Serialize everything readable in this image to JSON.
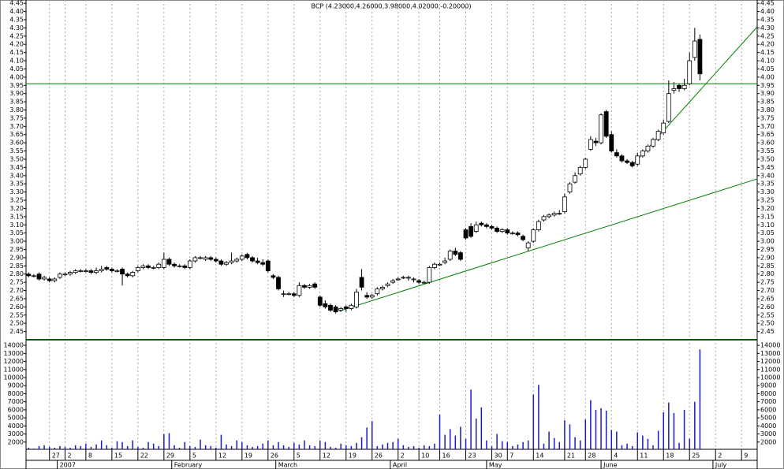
{
  "chart_data": [
    {
      "type": "candlestick",
      "title": "BCP (4.23000,4.26000,3.98000,4.02000,-0.20000)",
      "up_color": "#ffffff",
      "down_color": "#000000",
      "line_color": "#008000",
      "grid": true,
      "xlim": [
        -0.5,
        140
      ],
      "ylim": [
        2.4,
        4.47
      ],
      "yticks": [
        2.45,
        {
          "value": 2.5,
          "label": "2.50"
        },
        2.55,
        {
          "value": 2.6,
          "label": "2.60"
        },
        2.65,
        {
          "value": 2.7,
          "label": "2.70"
        },
        2.75,
        {
          "value": 2.8,
          "label": "2.80"
        },
        2.85,
        {
          "value": 2.9,
          "label": "2.90"
        },
        2.95,
        {
          "value": 3,
          "label": "3.00"
        },
        3.05,
        {
          "value": 3.1,
          "label": "3.10"
        },
        3.15,
        {
          "value": 3.2,
          "label": "3.20"
        },
        3.25,
        {
          "value": 3.3,
          "label": "3.30"
        },
        3.35,
        {
          "value": 3.4,
          "label": "3.40"
        },
        3.45,
        {
          "value": 3.5,
          "label": "3.50"
        },
        3.55,
        {
          "value": 3.6,
          "label": "3.60"
        },
        3.65,
        {
          "value": 3.7,
          "label": "3.70"
        },
        3.75,
        {
          "value": 3.8,
          "label": "3.80"
        },
        3.85,
        {
          "value": 3.9,
          "label": "3.90"
        },
        3.95,
        {
          "value": 4,
          "label": "4.00"
        },
        4.05,
        {
          "value": 4.1,
          "label": "4.10"
        },
        4.15,
        {
          "value": 4.2,
          "label": "4.20"
        },
        4.25,
        {
          "value": 4.3,
          "label": "4.30"
        },
        4.35,
        {
          "value": 4.4,
          "label": "4.40"
        },
        4.45
      ],
      "xticks": [
        {
          "value": 4,
          "label": "27"
        },
        {
          "value": 7,
          "label": "2"
        },
        {
          "value": 11,
          "label": "8"
        },
        {
          "value": 16,
          "label": "15"
        },
        {
          "value": 21,
          "label": "22"
        },
        {
          "value": 26,
          "label": "29"
        },
        {
          "value": 31,
          "label": "5"
        },
        {
          "value": 36,
          "label": "12"
        },
        {
          "value": 41,
          "label": "19"
        },
        {
          "value": 46,
          "label": "26"
        },
        {
          "value": 51,
          "label": "5"
        },
        {
          "value": 56,
          "label": "12"
        },
        {
          "value": 61,
          "label": "19"
        },
        {
          "value": 66,
          "label": "26"
        },
        {
          "value": 71,
          "label": "2"
        },
        {
          "value": 75,
          "label": "10"
        },
        {
          "value": 79,
          "label": "16"
        },
        {
          "value": 84,
          "label": "23"
        },
        {
          "value": 89,
          "label": "30"
        },
        {
          "value": 92,
          "label": "7"
        },
        {
          "value": 97,
          "label": "14"
        },
        {
          "value": 103,
          "label": "21"
        },
        {
          "value": 107,
          "label": "28"
        },
        {
          "value": 112,
          "label": "4"
        },
        {
          "value": 117,
          "label": "11"
        },
        {
          "value": 122,
          "label": "18"
        },
        {
          "value": 127,
          "label": "25"
        },
        {
          "value": 132,
          "label": "2"
        },
        {
          "value": 137,
          "label": "9"
        }
      ],
      "month_ticks": [
        {
          "value": 5.5,
          "label": "2007"
        },
        {
          "value": 27.5,
          "label": "February"
        },
        {
          "value": 47.5,
          "label": "March"
        },
        {
          "value": 69.5,
          "label": "April"
        },
        {
          "value": 88,
          "label": "May"
        },
        {
          "value": 110,
          "label": "June"
        },
        {
          "value": 131.5,
          "label": "July"
        }
      ],
      "hline": 3.96,
      "trendlines": [
        {
          "x": [
            59.7,
            140
          ],
          "y": [
            2.575,
            3.38
          ]
        },
        {
          "x": [
            115.8,
            140
          ],
          "y": [
            3.455,
            4.306
          ]
        }
      ],
      "ohlc": [
        [
          2.8,
          2.81,
          2.78,
          2.79
        ],
        [
          2.79,
          2.8,
          2.78,
          2.79
        ],
        [
          2.8,
          2.81,
          2.76,
          2.77
        ],
        [
          2.77,
          2.79,
          2.76,
          2.78
        ],
        [
          2.77,
          2.78,
          2.75,
          2.76
        ],
        [
          2.76,
          2.78,
          2.75,
          2.77
        ],
        [
          2.78,
          2.81,
          2.77,
          2.8
        ],
        [
          2.8,
          2.81,
          2.79,
          2.8
        ],
        [
          2.8,
          2.82,
          2.79,
          2.81
        ],
        [
          2.81,
          2.83,
          2.8,
          2.82
        ],
        [
          2.82,
          2.83,
          2.81,
          2.82
        ],
        [
          2.82,
          2.83,
          2.81,
          2.82
        ],
        [
          2.82,
          2.83,
          2.8,
          2.81
        ],
        [
          2.81,
          2.84,
          2.8,
          2.82
        ],
        [
          2.82,
          2.85,
          2.81,
          2.83
        ],
        [
          2.84,
          2.85,
          2.82,
          2.83
        ],
        [
          2.83,
          2.84,
          2.81,
          2.82
        ],
        [
          2.82,
          2.83,
          2.81,
          2.82
        ],
        [
          2.83,
          2.84,
          2.73,
          2.8
        ],
        [
          2.8,
          2.81,
          2.78,
          2.79
        ],
        [
          2.79,
          2.82,
          2.78,
          2.81
        ],
        [
          2.82,
          2.85,
          2.81,
          2.84
        ],
        [
          2.84,
          2.86,
          2.83,
          2.85
        ],
        [
          2.85,
          2.86,
          2.83,
          2.84
        ],
        [
          2.84,
          2.85,
          2.83,
          2.84
        ],
        [
          2.84,
          2.87,
          2.83,
          2.86
        ],
        [
          2.84,
          2.93,
          2.83,
          2.89
        ],
        [
          2.89,
          2.9,
          2.85,
          2.86
        ],
        [
          2.86,
          2.87,
          2.84,
          2.85
        ],
        [
          2.85,
          2.86,
          2.84,
          2.85
        ],
        [
          2.85,
          2.86,
          2.83,
          2.84
        ],
        [
          2.84,
          2.89,
          2.83,
          2.88
        ],
        [
          2.88,
          2.91,
          2.87,
          2.9
        ],
        [
          2.9,
          2.91,
          2.89,
          2.9
        ],
        [
          2.89,
          2.91,
          2.88,
          2.9
        ],
        [
          2.9,
          2.91,
          2.88,
          2.89
        ],
        [
          2.89,
          2.9,
          2.87,
          2.88
        ],
        [
          2.88,
          2.89,
          2.85,
          2.86
        ],
        [
          2.86,
          2.88,
          2.85,
          2.87
        ],
        [
          2.87,
          2.93,
          2.86,
          2.88
        ],
        [
          2.88,
          2.9,
          2.87,
          2.89
        ],
        [
          2.89,
          2.92,
          2.88,
          2.91
        ],
        [
          2.92,
          2.93,
          2.89,
          2.9
        ],
        [
          2.9,
          2.91,
          2.87,
          2.88
        ],
        [
          2.88,
          2.9,
          2.86,
          2.87
        ],
        [
          2.87,
          2.89,
          2.85,
          2.86
        ],
        [
          2.88,
          2.89,
          2.81,
          2.82
        ],
        [
          2.79,
          2.8,
          2.77,
          2.78
        ],
        [
          2.78,
          2.79,
          2.7,
          2.71
        ],
        [
          2.68,
          2.7,
          2.66,
          2.68
        ],
        [
          2.68,
          2.69,
          2.67,
          2.68
        ],
        [
          2.68,
          2.69,
          2.66,
          2.67
        ],
        [
          2.67,
          2.75,
          2.66,
          2.73
        ],
        [
          2.73,
          2.74,
          2.71,
          2.72
        ],
        [
          2.72,
          2.74,
          2.71,
          2.73
        ],
        [
          2.74,
          2.75,
          2.71,
          2.72
        ],
        [
          2.66,
          2.67,
          2.6,
          2.61
        ],
        [
          2.62,
          2.64,
          2.59,
          2.6
        ],
        [
          2.61,
          2.62,
          2.57,
          2.58
        ],
        [
          2.6,
          2.61,
          2.56,
          2.57
        ],
        [
          2.58,
          2.6,
          2.57,
          2.59
        ],
        [
          2.6,
          2.61,
          2.57,
          2.59
        ],
        [
          2.59,
          2.62,
          2.58,
          2.61
        ],
        [
          2.6,
          2.71,
          2.59,
          2.69
        ],
        [
          2.78,
          2.83,
          2.7,
          2.72
        ],
        [
          2.67,
          2.69,
          2.65,
          2.66
        ],
        [
          2.66,
          2.68,
          2.65,
          2.67
        ],
        [
          2.68,
          2.72,
          2.67,
          2.71
        ],
        [
          2.71,
          2.73,
          2.7,
          2.72
        ],
        [
          2.73,
          2.75,
          2.72,
          2.74
        ],
        [
          2.75,
          2.77,
          2.74,
          2.76
        ],
        [
          2.77,
          2.78,
          2.76,
          2.77
        ],
        [
          2.78,
          2.79,
          2.77,
          2.78
        ],
        [
          2.78,
          2.79,
          2.76,
          2.78
        ],
        [
          2.77,
          2.78,
          2.75,
          2.77
        ],
        [
          2.76,
          2.77,
          2.74,
          2.75
        ],
        [
          2.75,
          2.76,
          2.74,
          2.75
        ],
        [
          2.75,
          2.85,
          2.74,
          2.84
        ],
        [
          2.84,
          2.87,
          2.83,
          2.86
        ],
        [
          2.86,
          2.87,
          2.85,
          2.86
        ],
        [
          2.87,
          2.9,
          2.86,
          2.88
        ],
        [
          2.89,
          2.95,
          2.88,
          2.94
        ],
        [
          2.94,
          2.96,
          2.91,
          2.92
        ],
        [
          2.93,
          2.94,
          2.88,
          2.89
        ],
        [
          3.07,
          3.08,
          3.01,
          3.02
        ],
        [
          3.09,
          3.11,
          3.02,
          3.03
        ],
        [
          3.06,
          3.12,
          3.05,
          3.1
        ],
        [
          3.11,
          3.12,
          3.09,
          3.1
        ],
        [
          3.1,
          3.11,
          3.08,
          3.09
        ],
        [
          3.09,
          3.1,
          3.07,
          3.08
        ],
        [
          3.08,
          3.09,
          3.05,
          3.06
        ],
        [
          3.06,
          3.08,
          3.05,
          3.07
        ],
        [
          3.07,
          3.08,
          3.04,
          3.05
        ],
        [
          3.05,
          3.06,
          3.04,
          3.05
        ],
        [
          3.05,
          3.06,
          3.03,
          3.04
        ],
        [
          3.03,
          3.04,
          3.0,
          3.01
        ],
        [
          2.96,
          3.0,
          2.94,
          2.99
        ],
        [
          3.0,
          3.08,
          2.99,
          3.07
        ],
        [
          3.07,
          3.13,
          3.06,
          3.12
        ],
        [
          3.13,
          3.16,
          3.12,
          3.15
        ],
        [
          3.15,
          3.17,
          3.14,
          3.16
        ],
        [
          3.16,
          3.18,
          3.15,
          3.17
        ],
        [
          3.17,
          3.19,
          3.16,
          3.17
        ],
        [
          3.18,
          3.29,
          3.17,
          3.27
        ],
        [
          3.3,
          3.36,
          3.29,
          3.35
        ],
        [
          3.36,
          3.42,
          3.35,
          3.4
        ],
        [
          3.41,
          3.46,
          3.4,
          3.45
        ],
        [
          3.45,
          3.51,
          3.44,
          3.5
        ],
        [
          3.56,
          3.64,
          3.55,
          3.62
        ],
        [
          3.61,
          3.63,
          3.58,
          3.6
        ],
        [
          3.6,
          3.78,
          3.59,
          3.77
        ],
        [
          3.79,
          3.8,
          3.63,
          3.64
        ],
        [
          3.65,
          3.67,
          3.54,
          3.55
        ],
        [
          3.54,
          3.56,
          3.51,
          3.52
        ],
        [
          3.52,
          3.53,
          3.48,
          3.49
        ],
        [
          3.49,
          3.5,
          3.47,
          3.48
        ],
        [
          3.48,
          3.49,
          3.45,
          3.46
        ],
        [
          3.47,
          3.54,
          3.46,
          3.52
        ],
        [
          3.52,
          3.56,
          3.51,
          3.55
        ],
        [
          3.55,
          3.59,
          3.54,
          3.58
        ],
        [
          3.58,
          3.63,
          3.57,
          3.62
        ],
        [
          3.62,
          3.68,
          3.61,
          3.67
        ],
        [
          3.66,
          3.74,
          3.65,
          3.72
        ],
        [
          3.73,
          3.98,
          3.72,
          3.9
        ],
        [
          3.92,
          3.97,
          3.9,
          3.93
        ],
        [
          3.95,
          3.96,
          3.91,
          3.93
        ],
        [
          3.93,
          3.99,
          3.92,
          3.95
        ],
        [
          3.96,
          4.15,
          3.95,
          4.1
        ],
        [
          4.12,
          4.3,
          4.1,
          4.22
        ],
        [
          4.23,
          4.26,
          3.98,
          4.02
        ]
      ]
    },
    {
      "type": "bar",
      "color": "#1a1acc",
      "xlim": [
        -0.5,
        140
      ],
      "ylim": [
        1100,
        14500
      ],
      "yticks": [
        2000,
        3000,
        4000,
        5000,
        6000,
        7000,
        8000,
        9000,
        10000,
        11000,
        12000,
        13000,
        14000
      ],
      "values": [
        1300,
        1200,
        1500,
        1600,
        1400,
        1300,
        1500,
        1400,
        1300,
        1600,
        1500,
        1800,
        1400,
        1700,
        2200,
        1600,
        1300,
        2100,
        2000,
        1500,
        2200,
        1400,
        1300,
        2000,
        1800,
        1500,
        3000,
        3100,
        1600,
        1300,
        2000,
        1500,
        1400,
        2300,
        1600,
        1500,
        1300,
        2900,
        1700,
        1500,
        2200,
        2000,
        1600,
        1400,
        1500,
        1800,
        2200,
        1600,
        2000,
        1600,
        1400,
        1900,
        1700,
        2200,
        1600,
        1500,
        2200,
        2000,
        1400,
        1300,
        1800,
        1600,
        1500,
        1900,
        2600,
        3800,
        4600,
        1500,
        1700,
        1900,
        2000,
        2400,
        1600,
        1400,
        1500,
        1300,
        1600,
        1500,
        1800,
        5400,
        2900,
        3600,
        2800,
        3900,
        2400,
        8500,
        4900,
        6300,
        2200,
        1500,
        3000,
        2100,
        2000,
        1500,
        1700,
        2000,
        2200,
        7900,
        9100,
        1800,
        3300,
        2500,
        2000,
        4700,
        4200,
        2600,
        2200,
        4800,
        7200,
        6000,
        6200,
        5900,
        3500,
        3300,
        1600,
        1800,
        1500,
        3200,
        2800,
        2400,
        1600,
        3400,
        5700,
        6900,
        5600,
        1900,
        6000,
        2400,
        7000,
        13500
      ]
    }
  ]
}
